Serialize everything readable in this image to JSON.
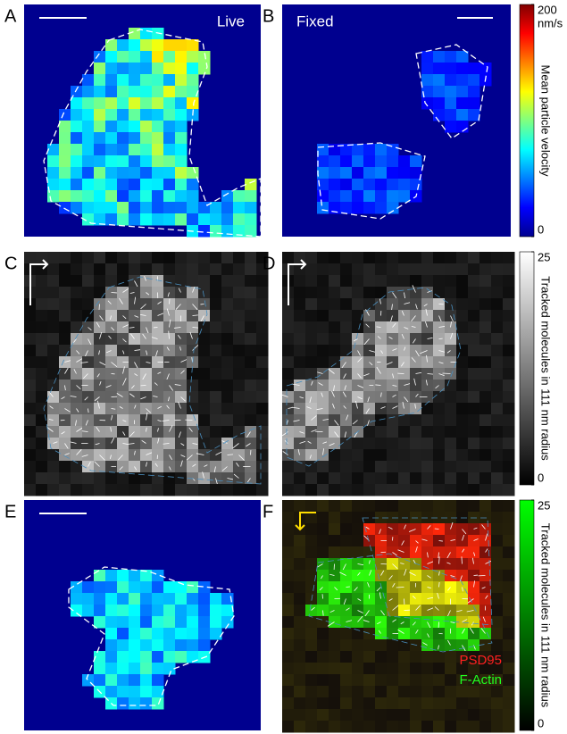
{
  "panels": [
    {
      "letter": "A",
      "label": "Live"
    },
    {
      "letter": "B",
      "label": "Fixed"
    },
    {
      "letter": "C"
    },
    {
      "letter": "D"
    },
    {
      "letter": "E"
    },
    {
      "letter": "F",
      "legend": [
        "PSD95",
        "F-Actin"
      ]
    }
  ],
  "colorbars": [
    {
      "label": "Mean particle velocity",
      "unit": "nm/s",
      "lim": [
        0,
        200
      ],
      "ticks": [
        0,
        200
      ],
      "colormap": "jet"
    },
    {
      "label": "Tracked molecules in 111 nm radius",
      "lim": [
        0,
        25
      ],
      "ticks": [
        0,
        25
      ],
      "colormap": "gray"
    },
    {
      "label": "Tracked molecules in 111 nm radius",
      "lim": [
        0,
        25
      ],
      "ticks": [
        0,
        25
      ],
      "colormap": "green"
    }
  ]
}
